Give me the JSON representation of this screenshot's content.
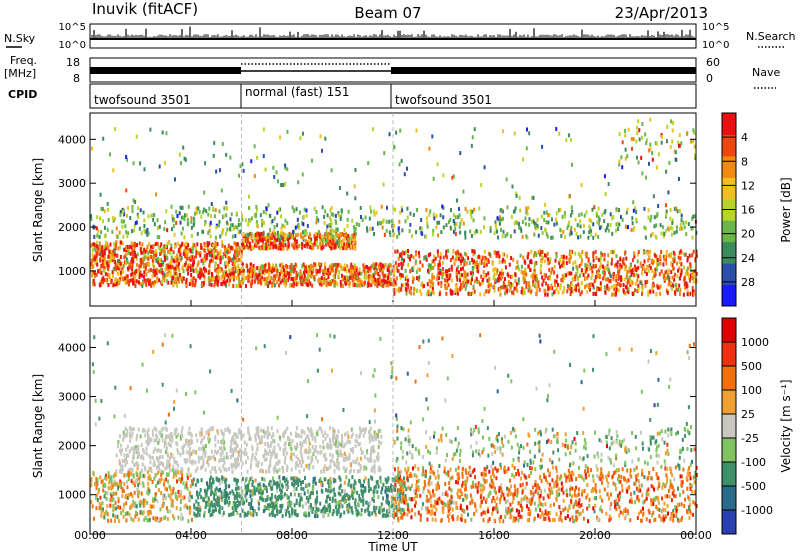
{
  "header": {
    "station": "Inuvik (fitACF)",
    "beam": "Beam 07",
    "date": "23/Apr/2013"
  },
  "summary": {
    "nsky_label": "N.Sky",
    "nsky_ticks": [
      "10^5",
      "10^0"
    ],
    "nsearch_label": "N.Search",
    "nsearch_ticks": [
      "10^5",
      "10^0"
    ],
    "freq_label_top": "Freq.",
    "freq_label_bottom": "[MHz]",
    "freq_ticks": [
      "18",
      "8"
    ],
    "nave_label": "Nave",
    "nave_ticks": [
      "60",
      "0"
    ],
    "cpid_label": "CPID",
    "cpid_segments": [
      {
        "label": "twofsound 3501",
        "start_h": 0,
        "end_h": 6
      },
      {
        "label": "normal (fast) 151",
        "start_h": 6,
        "end_h": 12
      },
      {
        "label": "twofsound 3501",
        "start_h": 12,
        "end_h": 24
      }
    ]
  },
  "chart_data": [
    {
      "type": "heatmap",
      "name": "power",
      "ylabel": "Slant Range [km]",
      "y_ticks": [
        "1000",
        "2000",
        "3000",
        "4000"
      ],
      "ylim": [
        200,
        4600
      ],
      "xlim": [
        0,
        24
      ],
      "colorbar": {
        "label": "Power [dB]",
        "ticks": [
          "4",
          "8",
          "12",
          "16",
          "20",
          "24",
          "28"
        ],
        "colors": [
          "#1a1aff",
          "#2a4fa8",
          "#3d8a5e",
          "#69b74a",
          "#b8d42a",
          "#f0c020",
          "#f08a10",
          "#f04510",
          "#e81010"
        ]
      }
    },
    {
      "type": "heatmap",
      "name": "velocity",
      "ylabel": "Slant Range [km]",
      "y_ticks": [
        "1000",
        "2000",
        "3000",
        "4000"
      ],
      "ylim": [
        200,
        4600
      ],
      "xlim": [
        0,
        24
      ],
      "xlabel": "Time UT",
      "x_ticks": [
        "00:00",
        "04:00",
        "08:00",
        "12:00",
        "16:00",
        "20:00",
        "00:00"
      ],
      "colorbar": {
        "label": "Velocity [m s⁻¹]",
        "ticks": [
          "1000",
          "500",
          "100",
          "25",
          "-25",
          "-100",
          "-500",
          "-1000"
        ],
        "colors": [
          "#2a3fb0",
          "#2a6a8a",
          "#3f8f6a",
          "#7fc460",
          "#c8c8c0",
          "#f0a030",
          "#f07010",
          "#f03010",
          "#e00000"
        ]
      }
    }
  ]
}
